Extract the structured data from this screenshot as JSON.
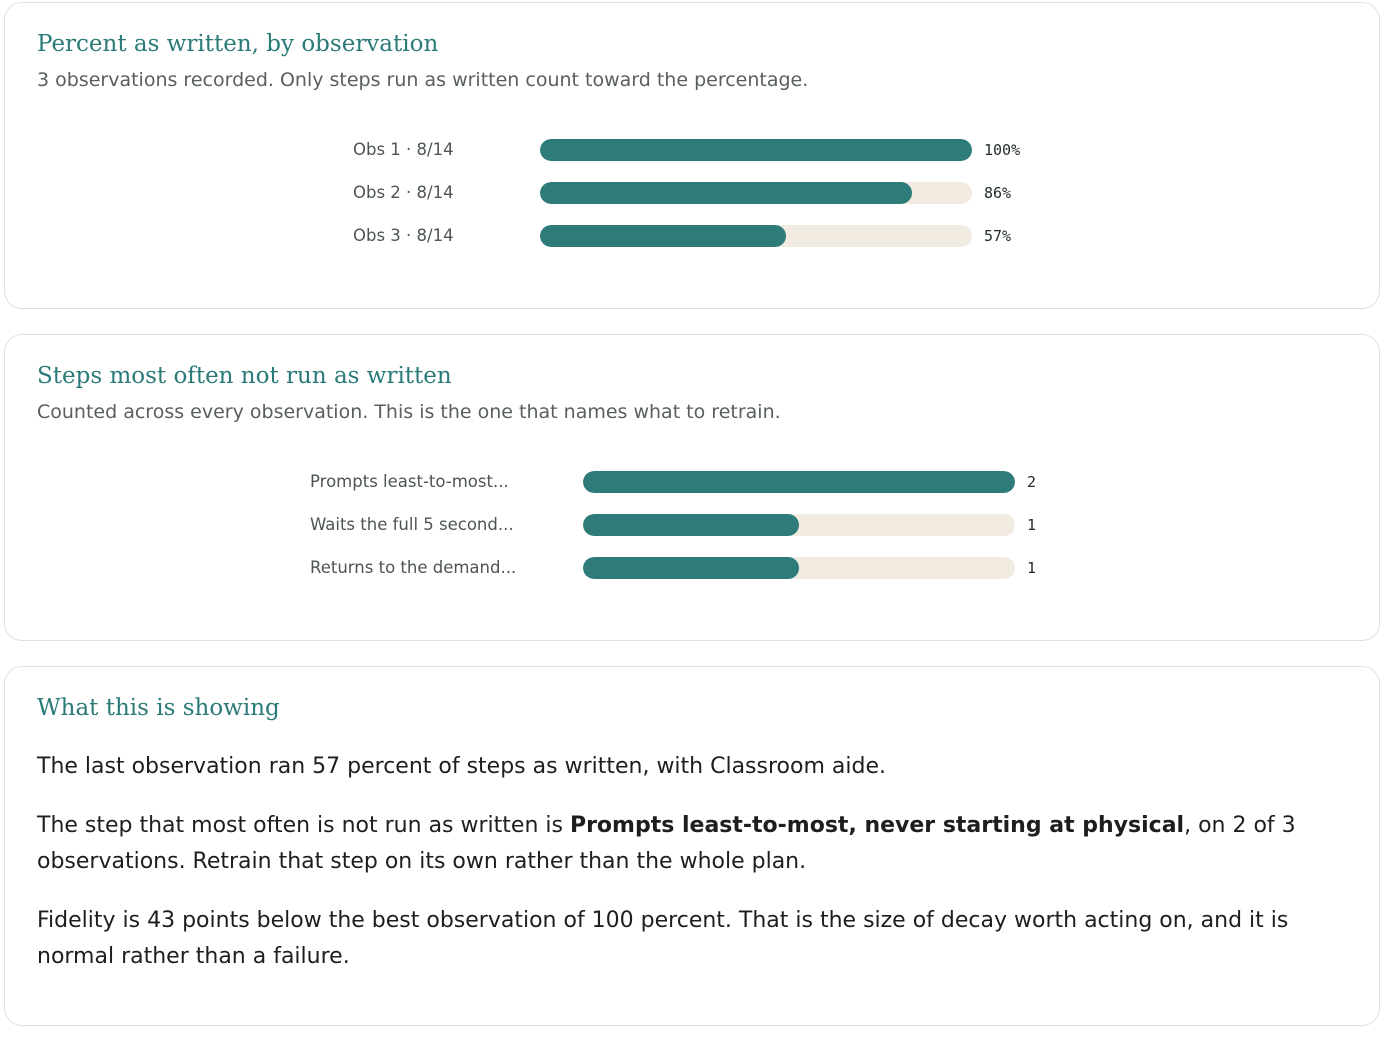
{
  "observations_card": {
    "title": "Percent as written, by observation",
    "subtitle": "3 observations recorded. Only steps run as written count toward the percentage.",
    "rows": [
      {
        "label": "Obs 1 · 8/14",
        "percent": 100,
        "value_text": "100%"
      },
      {
        "label": "Obs 2 · 8/14",
        "percent": 86,
        "value_text": "86%"
      },
      {
        "label": "Obs 3 · 8/14",
        "percent": 57,
        "value_text": "57%"
      }
    ]
  },
  "steps_card": {
    "title": "Steps most often not run as written",
    "subtitle": "Counted across every observation. This is the one that names what to retrain.",
    "max_count": 2,
    "rows": [
      {
        "label": "Prompts least-to-most...",
        "count": 2,
        "value_text": "2"
      },
      {
        "label": "Waits the full 5 second...",
        "count": 1,
        "value_text": "1"
      },
      {
        "label": "Returns to the demand...",
        "count": 1,
        "value_text": "1"
      }
    ]
  },
  "summary_card": {
    "title": "What this is showing",
    "para1": "The last observation ran 57 percent of steps as written, with Classroom aide.",
    "para2_before": "The step that most often is not run as written is ",
    "para2_bold": "Prompts least-to-most, never starting at physical",
    "para2_after": ", on 2 of 3 observations. Retrain that step on its own rather than the whole plan.",
    "para3": "Fidelity is 43 points below the best observation of 100 percent. That is the size of decay worth acting on, and it is normal rather than a failure."
  },
  "colors": {
    "accent": "#2a7a78",
    "bar_fill": "#2e7c79",
    "bar_track": "#f2ebe1",
    "card_border": "#e4e0d8"
  }
}
